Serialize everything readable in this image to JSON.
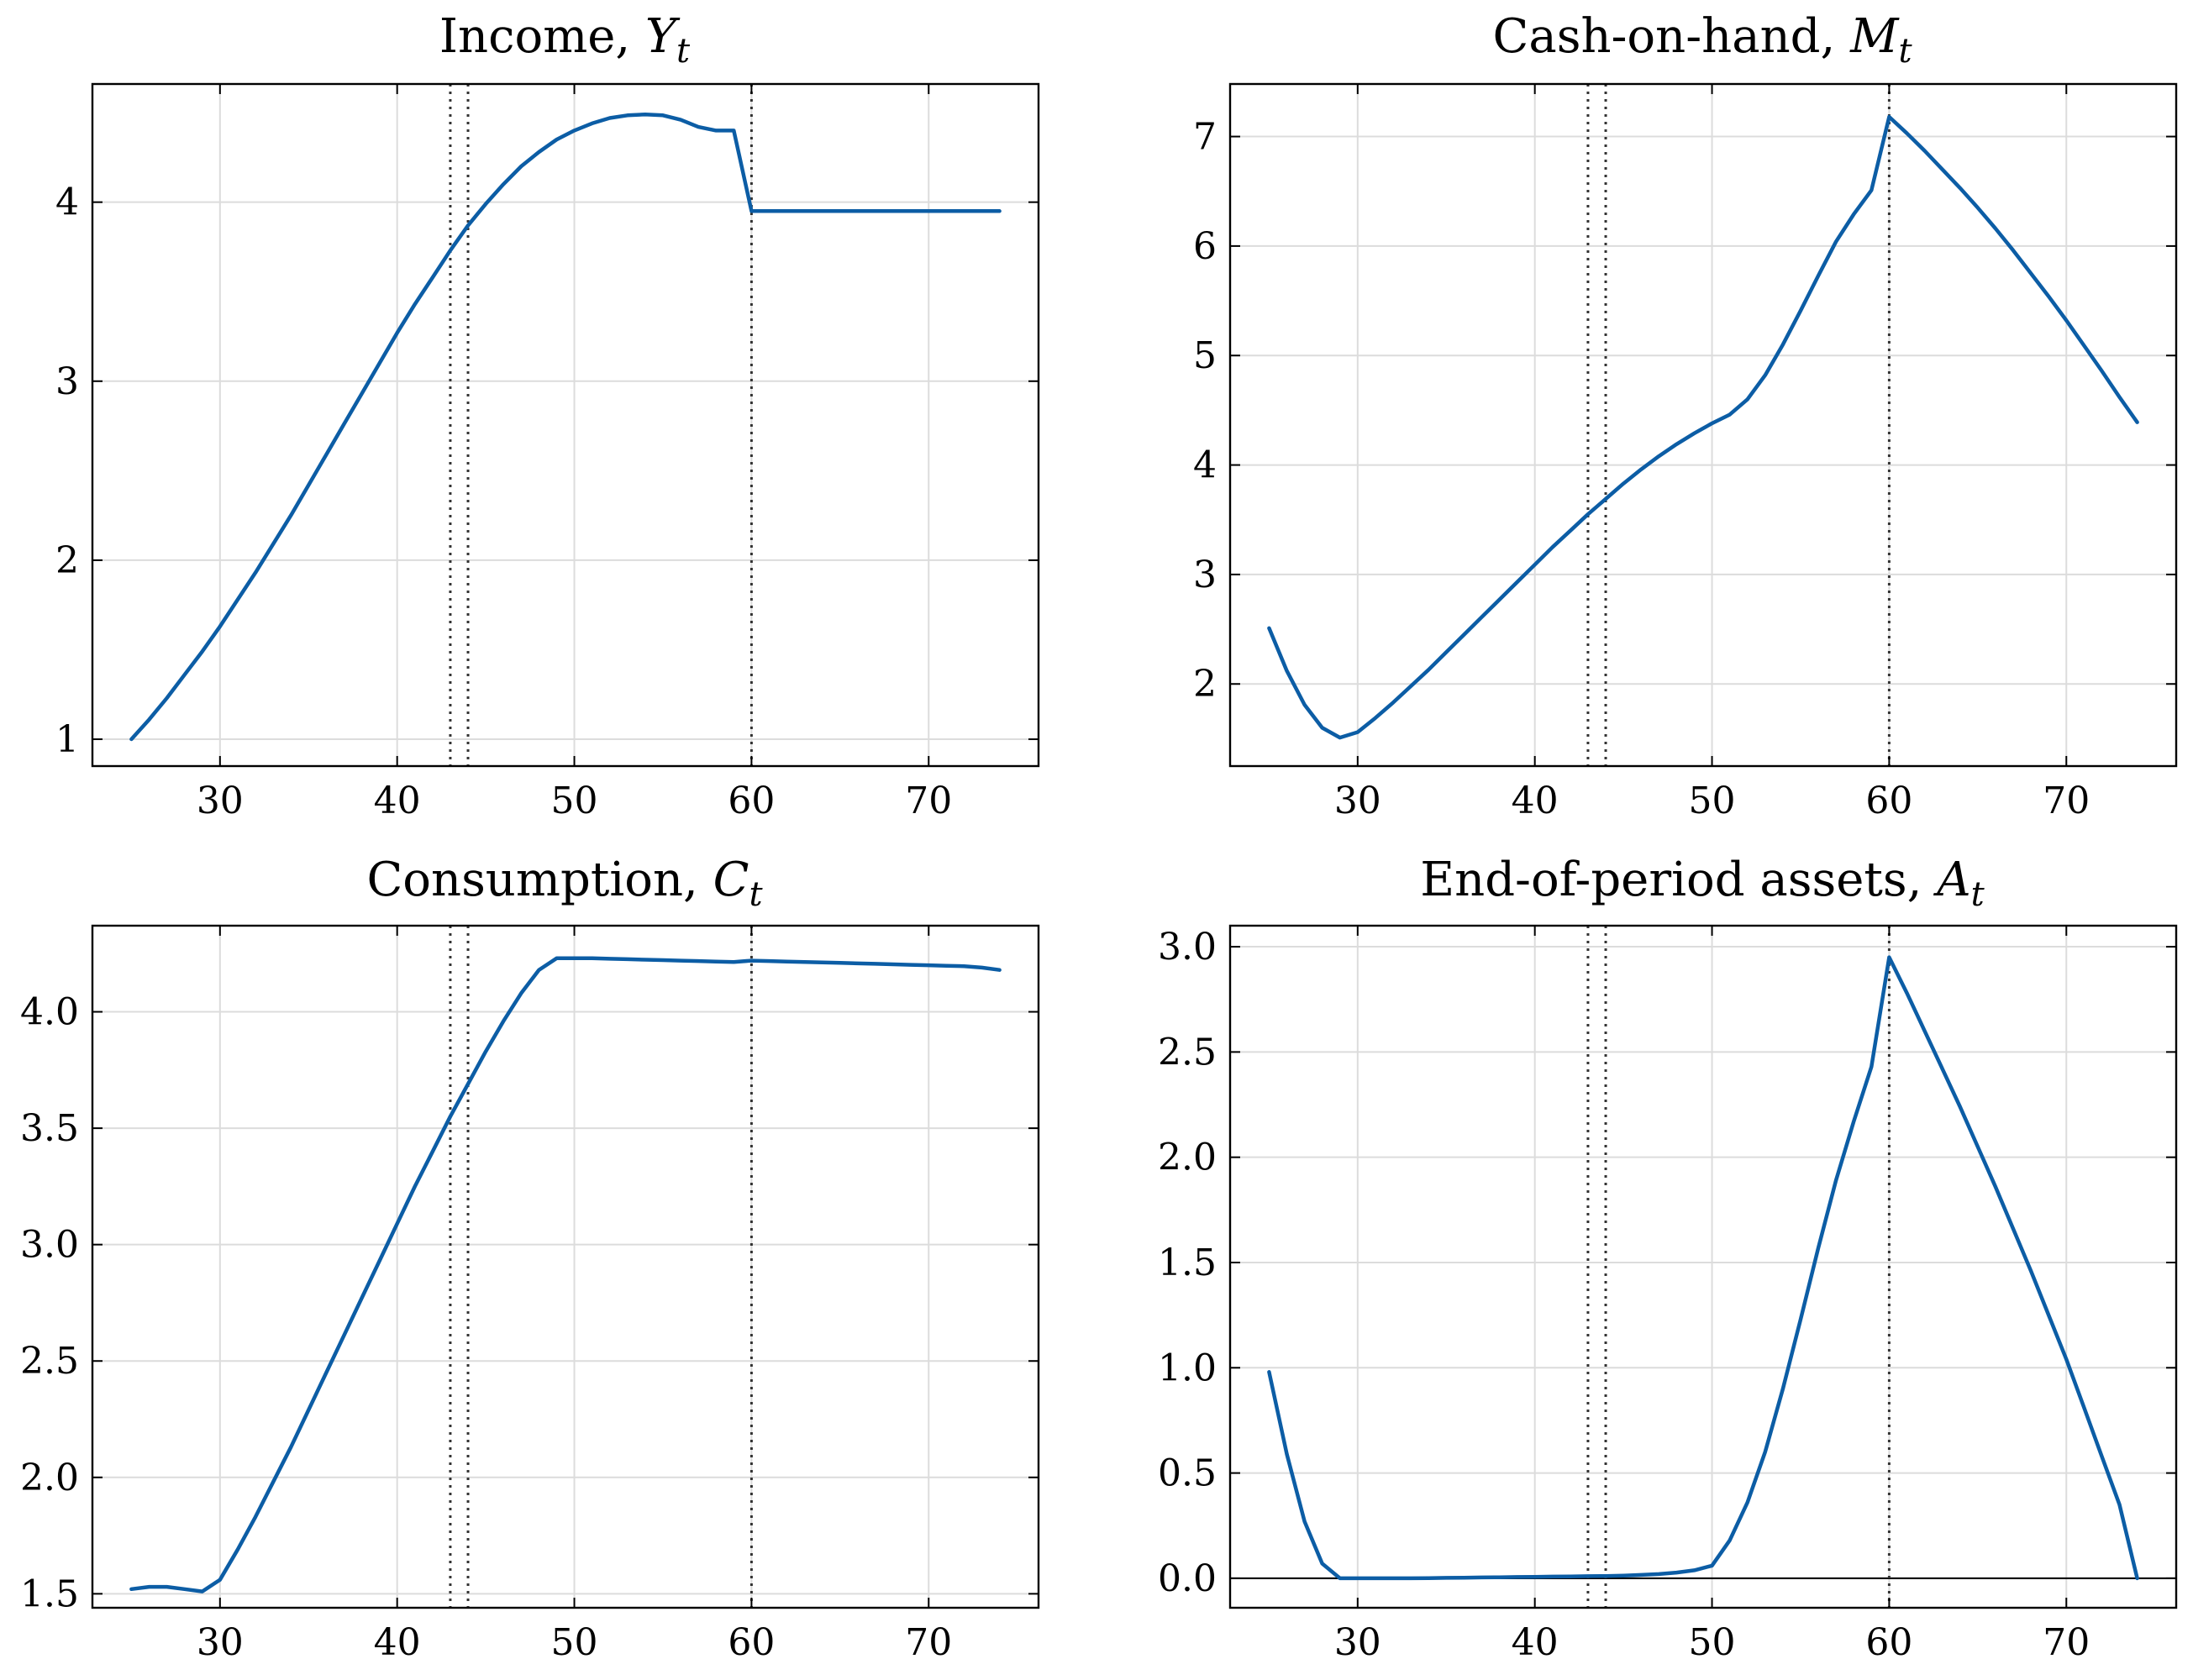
{
  "style": {
    "line_color": "#0c5da5",
    "vline_color": "#333333",
    "grid_color": "#dcdcdc"
  },
  "chart_data": [
    {
      "type": "line",
      "title_text": "Income, ",
      "title_symbol": "Y",
      "title_sub": "t",
      "xlabel": "",
      "ylabel": "",
      "xlim": [
        22.8,
        76.2
      ],
      "ylim": [
        0.85,
        4.66
      ],
      "xticks": [
        30,
        40,
        50,
        60,
        70
      ],
      "yticks": [
        1,
        2,
        3,
        4
      ],
      "ytick_labels": [
        "1",
        "2",
        "3",
        "4"
      ],
      "vlines": [
        43,
        44,
        60
      ],
      "grid": true,
      "series": [
        {
          "x": [
            25,
            26,
            27,
            28,
            29,
            30,
            31,
            32,
            33,
            34,
            35,
            36,
            37,
            38,
            39,
            40,
            41,
            42,
            43,
            44,
            45,
            46,
            47,
            48,
            49,
            50,
            51,
            52,
            53,
            54,
            55,
            56,
            57,
            58,
            59,
            60,
            61,
            62,
            63,
            64,
            65,
            66,
            67,
            68,
            69,
            70,
            71,
            72,
            73,
            74
          ],
          "values": [
            1.0,
            1.11,
            1.23,
            1.36,
            1.49,
            1.63,
            1.78,
            1.93,
            2.09,
            2.25,
            2.42,
            2.59,
            2.76,
            2.93,
            3.1,
            3.27,
            3.43,
            3.58,
            3.73,
            3.87,
            3.99,
            4.1,
            4.2,
            4.28,
            4.35,
            4.4,
            4.44,
            4.47,
            4.485,
            4.49,
            4.485,
            4.46,
            4.42,
            4.4,
            4.4,
            3.95,
            3.95,
            3.95,
            3.95,
            3.95,
            3.95,
            3.95,
            3.95,
            3.95,
            3.95,
            3.95,
            3.95,
            3.95,
            3.95,
            3.95
          ]
        }
      ]
    },
    {
      "type": "line",
      "title_text": "Cash-on-hand, ",
      "title_symbol": "M",
      "title_sub": "t",
      "xlabel": "",
      "ylabel": "",
      "xlim": [
        22.8,
        76.2
      ],
      "ylim": [
        1.25,
        7.48
      ],
      "xticks": [
        30,
        40,
        50,
        60,
        70
      ],
      "yticks": [
        2,
        3,
        4,
        5,
        6,
        7
      ],
      "ytick_labels": [
        "2",
        "3",
        "4",
        "5",
        "6",
        "7"
      ],
      "vlines": [
        43,
        44,
        60
      ],
      "grid": true,
      "series": [
        {
          "x": [
            25,
            26,
            27,
            28,
            29,
            30,
            31,
            32,
            33,
            34,
            35,
            36,
            37,
            38,
            39,
            40,
            41,
            42,
            43,
            44,
            45,
            46,
            47,
            48,
            49,
            50,
            51,
            52,
            53,
            54,
            55,
            56,
            57,
            58,
            59,
            60,
            61,
            62,
            63,
            64,
            65,
            66,
            67,
            68,
            69,
            70,
            71,
            72,
            73,
            74
          ],
          "values": [
            2.51,
            2.12,
            1.81,
            1.6,
            1.51,
            1.56,
            1.69,
            1.83,
            1.98,
            2.13,
            2.29,
            2.45,
            2.61,
            2.77,
            2.93,
            3.09,
            3.25,
            3.4,
            3.55,
            3.69,
            3.83,
            3.96,
            4.08,
            4.19,
            4.29,
            4.38,
            4.46,
            4.6,
            4.82,
            5.1,
            5.41,
            5.73,
            6.04,
            6.29,
            6.51,
            7.18,
            7.03,
            6.87,
            6.7,
            6.53,
            6.35,
            6.16,
            5.96,
            5.75,
            5.54,
            5.32,
            5.09,
            4.86,
            4.62,
            4.39
          ]
        }
      ]
    },
    {
      "type": "line",
      "title_text": "Consumption, ",
      "title_symbol": "C",
      "title_sub": "t",
      "xlabel": "",
      "ylabel": "",
      "xlim": [
        22.8,
        76.2
      ],
      "ylim": [
        1.44,
        4.37
      ],
      "xticks": [
        30,
        40,
        50,
        60,
        70
      ],
      "yticks": [
        1.5,
        2.0,
        2.5,
        3.0,
        3.5,
        4.0
      ],
      "ytick_labels": [
        "1.5",
        "2.0",
        "2.5",
        "3.0",
        "3.5",
        "4.0"
      ],
      "vlines": [
        43,
        44,
        60
      ],
      "grid": true,
      "series": [
        {
          "x": [
            25,
            26,
            27,
            28,
            29,
            30,
            31,
            32,
            33,
            34,
            35,
            36,
            37,
            38,
            39,
            40,
            41,
            42,
            43,
            44,
            45,
            46,
            47,
            48,
            49,
            50,
            51,
            52,
            53,
            54,
            55,
            56,
            57,
            58,
            59,
            60,
            61,
            62,
            63,
            64,
            65,
            66,
            67,
            68,
            69,
            70,
            71,
            72,
            73,
            74
          ],
          "values": [
            1.52,
            1.53,
            1.53,
            1.52,
            1.51,
            1.56,
            1.69,
            1.83,
            1.98,
            2.13,
            2.29,
            2.45,
            2.61,
            2.77,
            2.93,
            3.09,
            3.25,
            3.4,
            3.55,
            3.69,
            3.83,
            3.96,
            4.08,
            4.18,
            4.23,
            4.23,
            4.23,
            4.228,
            4.226,
            4.224,
            4.222,
            4.22,
            4.218,
            4.216,
            4.214,
            4.22,
            4.218,
            4.216,
            4.214,
            4.212,
            4.21,
            4.208,
            4.206,
            4.204,
            4.202,
            4.2,
            4.198,
            4.196,
            4.19,
            4.18
          ]
        }
      ]
    },
    {
      "type": "line",
      "title_text": "End-of-period assets, ",
      "title_symbol": "A",
      "title_sub": "t",
      "xlabel": "",
      "ylabel": "",
      "xlim": [
        22.8,
        76.2
      ],
      "ylim": [
        -0.14,
        3.1
      ],
      "xticks": [
        30,
        40,
        50,
        60,
        70
      ],
      "yticks": [
        0.0,
        0.5,
        1.0,
        1.5,
        2.0,
        2.5,
        3.0
      ],
      "ytick_labels": [
        "0.0",
        "0.5",
        "1.0",
        "1.5",
        "2.0",
        "2.5",
        "3.0"
      ],
      "vlines": [
        43,
        44,
        60
      ],
      "hline": 0,
      "grid": true,
      "series": [
        {
          "x": [
            25,
            26,
            27,
            28,
            29,
            30,
            31,
            32,
            33,
            34,
            35,
            36,
            37,
            38,
            39,
            40,
            41,
            42,
            43,
            44,
            45,
            46,
            47,
            48,
            49,
            50,
            51,
            52,
            53,
            54,
            55,
            56,
            57,
            58,
            59,
            60,
            61,
            62,
            63,
            64,
            65,
            66,
            67,
            68,
            69,
            70,
            71,
            72,
            73,
            74
          ],
          "values": [
            0.98,
            0.59,
            0.27,
            0.07,
            0.0,
            0.0,
            0.0,
            0.0,
            0.0,
            0.001,
            0.002,
            0.003,
            0.004,
            0.005,
            0.006,
            0.007,
            0.008,
            0.009,
            0.01,
            0.011,
            0.013,
            0.016,
            0.02,
            0.027,
            0.038,
            0.06,
            0.18,
            0.36,
            0.6,
            0.9,
            1.23,
            1.57,
            1.89,
            2.17,
            2.43,
            2.95,
            2.78,
            2.6,
            2.42,
            2.24,
            2.05,
            1.86,
            1.66,
            1.46,
            1.25,
            1.04,
            0.81,
            0.58,
            0.35,
            0.0
          ]
        }
      ]
    }
  ]
}
